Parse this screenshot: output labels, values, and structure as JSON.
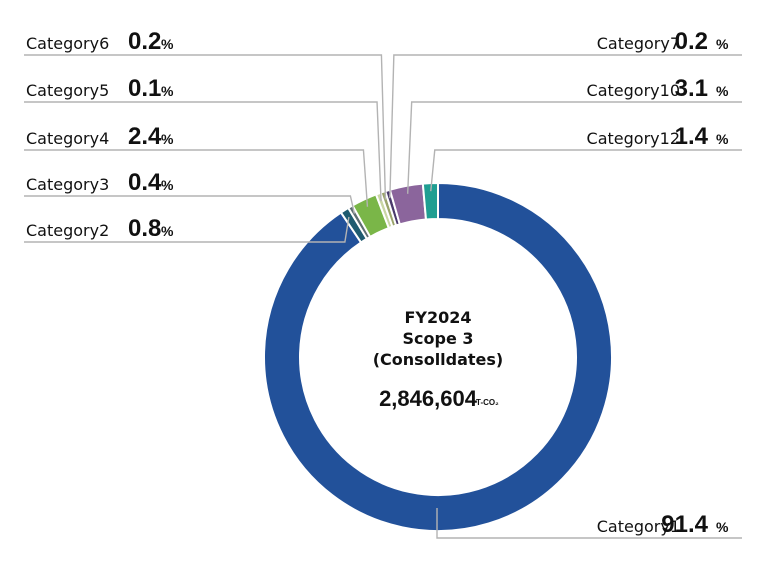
{
  "chart_data": {
    "type": "pie",
    "variant": "donut",
    "center": {
      "title_lines": [
        "FY2024",
        "Scope 3",
        "(Consolldates)"
      ],
      "total": "2,846,604",
      "unit": "T-CO₂"
    },
    "percent_symbol": "%",
    "slices": [
      {
        "name": "Category1",
        "value": 91.4,
        "label": "91.4",
        "color": "#22519a"
      },
      {
        "name": "Category2",
        "value": 0.8,
        "label": "0.8",
        "color": "#1f5b70"
      },
      {
        "name": "Category3",
        "value": 0.4,
        "label": "0.4",
        "color": "#5e6e73"
      },
      {
        "name": "Category4",
        "value": 2.4,
        "label": "2.4",
        "color": "#7ab648"
      },
      {
        "name": "Category5",
        "value": 0.1,
        "label": "0.1",
        "color": "#c9d6a4"
      },
      {
        "name": "Category6",
        "value": 0.2,
        "label": "0.2",
        "color": "#9aa46a"
      },
      {
        "name": "Category7",
        "value": 0.2,
        "label": "0.2",
        "color": "#4a3a6b"
      },
      {
        "name": "Category10",
        "value": 3.1,
        "label": "3.1",
        "color": "#8b659c"
      },
      {
        "name": "Category12",
        "value": 1.4,
        "label": "1.4",
        "color": "#1f9e92"
      }
    ]
  }
}
